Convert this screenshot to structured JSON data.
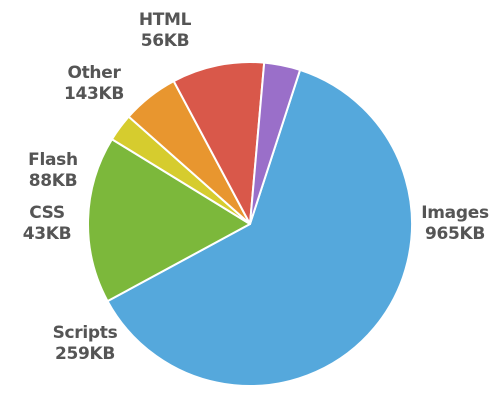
{
  "chart_data": {
    "type": "pie",
    "title": "",
    "unit": "KB",
    "slices": [
      {
        "label": "Images",
        "value": 965,
        "display": "965KB",
        "color": "#55a8dc"
      },
      {
        "label": "Scripts",
        "value": 259,
        "display": "259KB",
        "color": "#7cb83b"
      },
      {
        "label": "CSS",
        "value": 43,
        "display": "43KB",
        "color": "#d6cc2e"
      },
      {
        "label": "Flash",
        "value": 88,
        "display": "88KB",
        "color": "#e8962f"
      },
      {
        "label": "Other",
        "value": 143,
        "display": "143KB",
        "color": "#d9584a"
      },
      {
        "label": "HTML",
        "value": 56,
        "display": "56KB",
        "color": "#9a6fc9"
      }
    ],
    "legend": "none"
  }
}
